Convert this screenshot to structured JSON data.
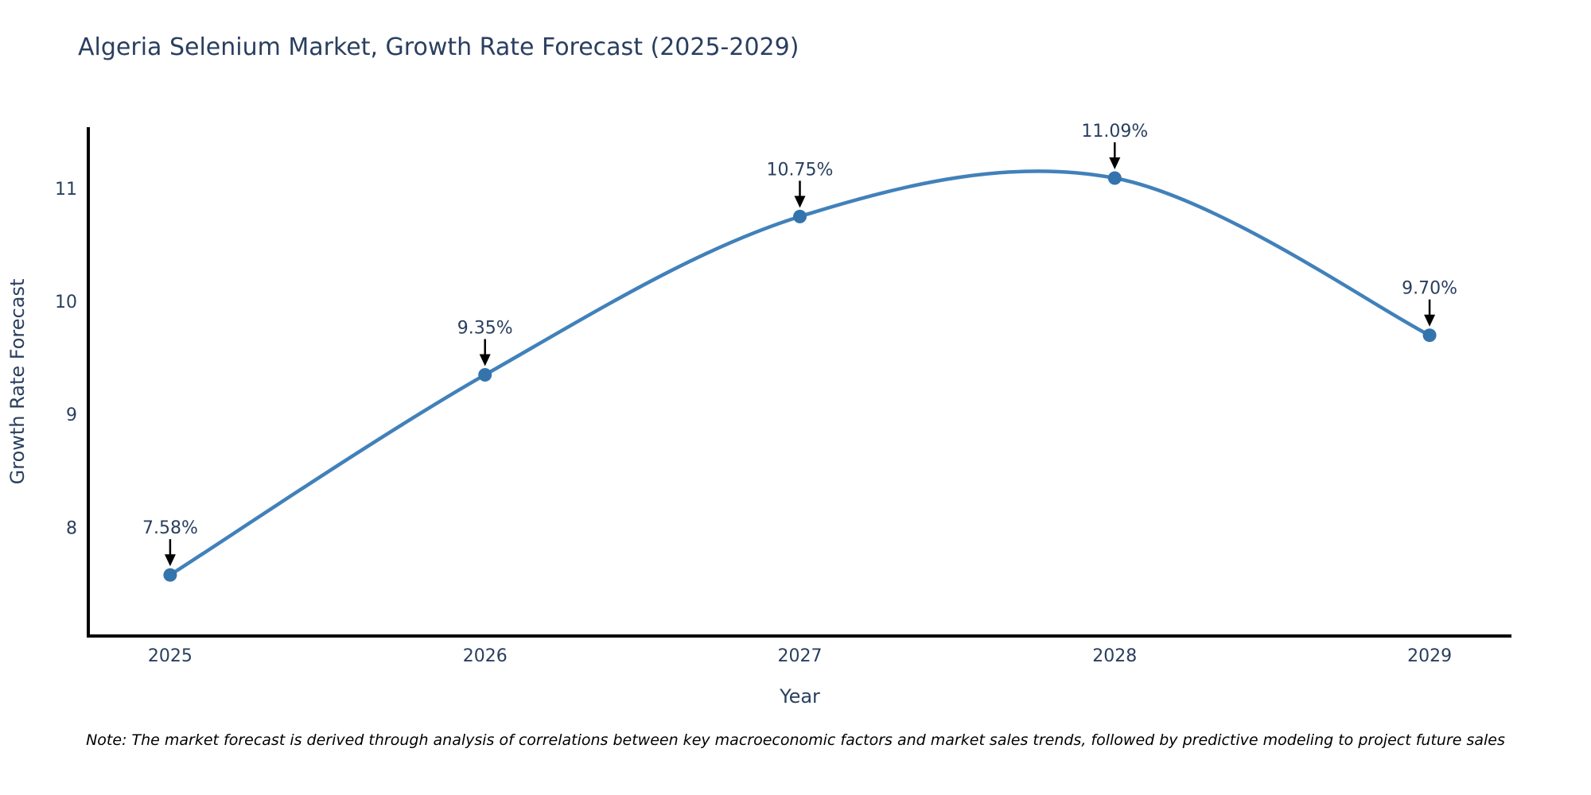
{
  "title": "Algeria Selenium Market, Growth Rate Forecast (2025-2029)",
  "footnote": "Note: The market forecast is derived through analysis of correlations between key macroeconomic factors and market sales trends, followed by predictive modeling to project future sales",
  "chart_data": {
    "type": "line",
    "title": "Algeria Selenium Market, Growth Rate Forecast (2025-2029)",
    "xlabel": "Year",
    "ylabel": "Growth Rate Forecast",
    "x": [
      2025,
      2026,
      2027,
      2028,
      2029
    ],
    "y": [
      7.58,
      9.35,
      10.75,
      11.09,
      9.7
    ],
    "point_labels": [
      "7.58%",
      "9.35%",
      "10.75%",
      "11.09%",
      "9.70%"
    ],
    "xticks": [
      "2025",
      "2026",
      "2027",
      "2028",
      "2029"
    ],
    "yticks": [
      8,
      9,
      10,
      11
    ],
    "xlim": [
      2024.74,
      2029.26
    ],
    "ylim": [
      7.04,
      11.54
    ],
    "line_shape": "spline",
    "grid": false,
    "legend": "none",
    "colors": {
      "line": "#4181ba",
      "marker": "#3474ad",
      "axis": "#000000",
      "text": "#2a3f5f",
      "annotation_arrow": "#000000",
      "background": "#ffffff"
    }
  }
}
